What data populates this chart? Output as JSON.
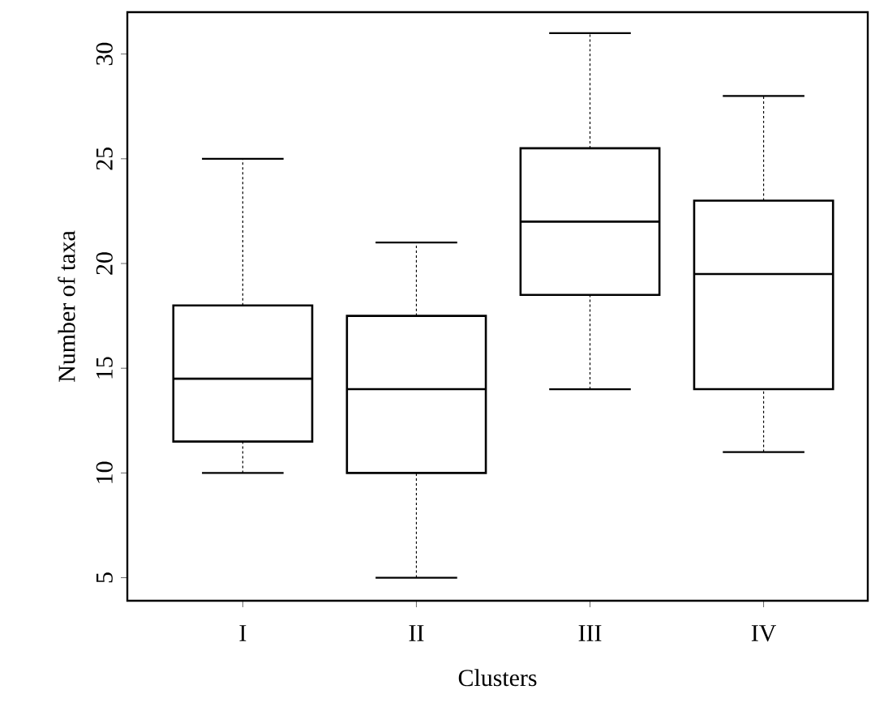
{
  "chart_data": {
    "type": "box",
    "xlabel": "Clusters",
    "ylabel": "Number of taxa",
    "categories": [
      "I",
      "II",
      "III",
      "IV"
    ],
    "boxes": [
      {
        "low": 10,
        "q1": 11.5,
        "median": 14.5,
        "q3": 18,
        "high": 25
      },
      {
        "low": 5,
        "q1": 10,
        "median": 14,
        "q3": 17.5,
        "high": 21
      },
      {
        "low": 14,
        "q1": 18.5,
        "median": 22,
        "q3": 25.5,
        "high": 31
      },
      {
        "low": 11,
        "q1": 14,
        "median": 19.5,
        "q3": 23,
        "high": 28
      }
    ],
    "color": "#000000",
    "line_style": "dashed",
    "ylim": [
      3.9,
      32
    ],
    "yticks": [
      5,
      10,
      15,
      20,
      25,
      30
    ]
  }
}
